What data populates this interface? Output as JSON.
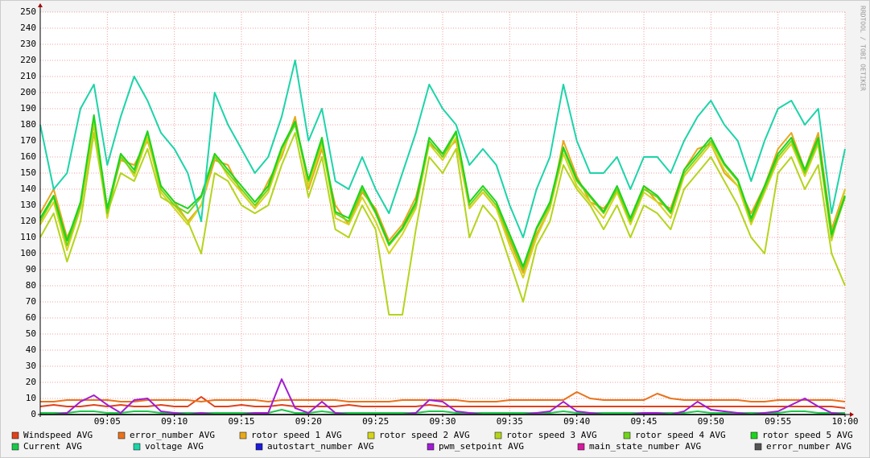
{
  "chart_data": {
    "type": "line",
    "watermark": "RRDTOOL / TOBI OETIKER",
    "x": [
      "09:00",
      "09:01",
      "09:02",
      "09:03",
      "09:04",
      "09:05",
      "09:06",
      "09:07",
      "09:08",
      "09:09",
      "09:10",
      "09:11",
      "09:12",
      "09:13",
      "09:14",
      "09:15",
      "09:16",
      "09:17",
      "09:18",
      "09:19",
      "09:20",
      "09:21",
      "09:22",
      "09:23",
      "09:24",
      "09:25",
      "09:26",
      "09:27",
      "09:28",
      "09:29",
      "09:30",
      "09:31",
      "09:32",
      "09:33",
      "09:34",
      "09:35",
      "09:36",
      "09:37",
      "09:38",
      "09:39",
      "09:40",
      "09:41",
      "09:42",
      "09:43",
      "09:44",
      "09:45",
      "09:46",
      "09:47",
      "09:48",
      "09:49",
      "09:50",
      "09:51",
      "09:52",
      "09:53",
      "09:54",
      "09:55",
      "09:56",
      "09:57",
      "09:58",
      "09:59",
      "10:00"
    ],
    "xlim": [
      "09:00",
      "10:00"
    ],
    "xticks": [
      "09:05",
      "09:10",
      "09:15",
      "09:20",
      "09:25",
      "09:30",
      "09:35",
      "09:40",
      "09:45",
      "09:50",
      "09:55",
      "10:00"
    ],
    "ylim": [
      0,
      250
    ],
    "yticks": [
      0,
      10,
      20,
      30,
      40,
      50,
      60,
      70,
      80,
      90,
      100,
      110,
      120,
      130,
      140,
      150,
      160,
      170,
      180,
      190,
      200,
      210,
      220,
      230,
      240,
      250
    ],
    "grid": true,
    "series": [
      {
        "name": "Windspeed AVG",
        "color": "#e0421c",
        "values": [
          5,
          6,
          5,
          5,
          6,
          5,
          6,
          5,
          5,
          6,
          5,
          5,
          11,
          5,
          5,
          6,
          5,
          5,
          6,
          5,
          5,
          5,
          5,
          6,
          5,
          5,
          5,
          5,
          5,
          6,
          5,
          5,
          5,
          5,
          5,
          5,
          5,
          5,
          5,
          5,
          5,
          5,
          5,
          5,
          5,
          5,
          5,
          5,
          5,
          5,
          5,
          5,
          5,
          5,
          5,
          5,
          5,
          5,
          5,
          5,
          4
        ]
      },
      {
        "name": "error_number AVG",
        "color": "#e8731c",
        "values": [
          8,
          8,
          9,
          9,
          9,
          9,
          8,
          8,
          9,
          9,
          9,
          9,
          8,
          9,
          9,
          9,
          9,
          8,
          9,
          9,
          9,
          9,
          9,
          8,
          8,
          8,
          8,
          9,
          9,
          9,
          9,
          9,
          8,
          8,
          8,
          9,
          9,
          9,
          9,
          9,
          14,
          10,
          9,
          9,
          9,
          9,
          13,
          10,
          9,
          9,
          9,
          9,
          9,
          8,
          8,
          9,
          9,
          9,
          9,
          9,
          8
        ]
      },
      {
        "name": "rotor speed 1 AVG",
        "color": "#e8a81c",
        "values": [
          125,
          140,
          110,
          128,
          180,
          128,
          158,
          155,
          170,
          142,
          132,
          120,
          130,
          158,
          155,
          138,
          128,
          145,
          160,
          185,
          140,
          165,
          130,
          118,
          138,
          128,
          108,
          118,
          135,
          168,
          162,
          170,
          128,
          138,
          128,
          108,
          88,
          112,
          128,
          170,
          148,
          132,
          128,
          138,
          122,
          142,
          132,
          128,
          152,
          165,
          168,
          150,
          142,
          125,
          142,
          165,
          175,
          152,
          175,
          115,
          140
        ]
      },
      {
        "name": "rotor speed 2 AVG",
        "color": "#d4d41c",
        "values": [
          118,
          132,
          102,
          128,
          182,
          122,
          162,
          148,
          172,
          138,
          128,
          118,
          130,
          162,
          148,
          138,
          128,
          138,
          162,
          182,
          142,
          168,
          122,
          118,
          135,
          120,
          100,
          112,
          128,
          168,
          158,
          172,
          128,
          138,
          128,
          105,
          85,
          110,
          128,
          162,
          142,
          132,
          122,
          138,
          118,
          138,
          132,
          122,
          148,
          158,
          168,
          152,
          142,
          118,
          138,
          158,
          168,
          148,
          168,
          108,
          140
        ]
      },
      {
        "name": "rotor speed 3 AVG",
        "color": "#b4d41c",
        "values": [
          110,
          125,
          95,
          120,
          175,
          125,
          150,
          145,
          165,
          135,
          130,
          120,
          100,
          150,
          145,
          130,
          125,
          130,
          155,
          175,
          135,
          160,
          115,
          110,
          130,
          115,
          62,
          62,
          115,
          160,
          150,
          165,
          110,
          130,
          120,
          95,
          70,
          105,
          120,
          155,
          140,
          130,
          115,
          130,
          110,
          130,
          125,
          115,
          140,
          150,
          160,
          145,
          130,
          110,
          100,
          150,
          160,
          140,
          155,
          100,
          80
        ]
      },
      {
        "name": "rotor speed 4 AVG",
        "color": "#73d41c",
        "values": [
          120,
          135,
          105,
          130,
          185,
          125,
          160,
          150,
          175,
          140,
          130,
          125,
          135,
          160,
          150,
          140,
          130,
          140,
          165,
          180,
          145,
          170,
          125,
          120,
          140,
          125,
          105,
          115,
          130,
          170,
          160,
          175,
          130,
          140,
          130,
          110,
          90,
          115,
          130,
          165,
          145,
          135,
          125,
          140,
          120,
          140,
          135,
          125,
          150,
          160,
          170,
          155,
          145,
          120,
          140,
          160,
          170,
          150,
          170,
          110,
          135
        ]
      },
      {
        "name": "rotor speed 5 AVG",
        "color": "#1cd41c",
        "values": [
          122,
          136,
          108,
          132,
          186,
          128,
          162,
          152,
          176,
          142,
          132,
          128,
          136,
          162,
          152,
          142,
          132,
          142,
          166,
          182,
          146,
          172,
          126,
          122,
          142,
          126,
          106,
          116,
          132,
          172,
          162,
          176,
          132,
          142,
          132,
          112,
          92,
          116,
          132,
          166,
          146,
          136,
          126,
          142,
          122,
          142,
          136,
          126,
          152,
          162,
          172,
          156,
          146,
          122,
          142,
          162,
          172,
          152,
          172,
          112,
          136
        ]
      },
      {
        "name": "Current AVG",
        "color": "#1cc84a",
        "values": [
          1,
          1,
          1,
          2,
          2,
          1,
          1,
          2,
          2,
          1,
          1,
          1,
          1,
          1,
          1,
          1,
          1,
          1,
          3,
          1,
          1,
          2,
          1,
          1,
          1,
          1,
          1,
          1,
          1,
          2,
          2,
          1,
          1,
          1,
          1,
          1,
          1,
          1,
          1,
          2,
          1,
          1,
          1,
          1,
          1,
          1,
          1,
          1,
          1,
          2,
          1,
          1,
          1,
          1,
          1,
          1,
          2,
          2,
          1,
          1,
          1
        ]
      },
      {
        "name": "voltage AVG",
        "color": "#1cd4a8",
        "values": [
          180,
          140,
          150,
          190,
          205,
          155,
          185,
          210,
          195,
          175,
          165,
          150,
          120,
          200,
          180,
          165,
          150,
          160,
          185,
          220,
          170,
          190,
          145,
          140,
          160,
          140,
          125,
          150,
          175,
          205,
          190,
          180,
          155,
          165,
          155,
          130,
          110,
          140,
          160,
          205,
          170,
          150,
          150,
          160,
          140,
          160,
          160,
          150,
          170,
          185,
          195,
          180,
          170,
          145,
          170,
          190,
          195,
          180,
          190,
          125,
          165
        ]
      },
      {
        "name": "autostart_number AVG",
        "color": "#1c1cd4",
        "values": [
          0,
          0,
          0,
          0,
          0,
          0,
          0,
          0,
          0,
          0,
          0,
          0,
          0,
          0,
          0,
          0,
          0,
          0,
          0,
          0,
          0,
          0,
          0,
          0,
          0,
          0,
          0,
          0,
          0,
          0,
          0,
          0,
          0,
          0,
          0,
          0,
          0,
          0,
          0,
          0,
          0,
          0,
          0,
          0,
          0,
          0,
          0,
          0,
          0,
          0,
          0,
          0,
          0,
          0,
          0,
          0,
          0,
          0,
          0,
          0,
          0
        ]
      },
      {
        "name": "pwm_setpoint AVG",
        "color": "#a01cd4",
        "values": [
          0,
          0,
          1,
          8,
          12,
          6,
          1,
          9,
          10,
          2,
          1,
          0,
          1,
          0,
          0,
          0,
          1,
          1,
          22,
          4,
          1,
          8,
          1,
          0,
          0,
          0,
          0,
          0,
          1,
          9,
          8,
          2,
          1,
          0,
          0,
          0,
          0,
          1,
          2,
          8,
          2,
          1,
          0,
          0,
          0,
          1,
          1,
          0,
          2,
          8,
          3,
          2,
          1,
          0,
          1,
          2,
          6,
          10,
          5,
          1,
          0
        ]
      },
      {
        "name": "main_state_number AVG",
        "color": "#d41ca0",
        "values": [
          0,
          0,
          0,
          0,
          0,
          0,
          0,
          0,
          0,
          0,
          0,
          0,
          0,
          0,
          0,
          0,
          0,
          0,
          0,
          0,
          0,
          0,
          0,
          0,
          0,
          0,
          0,
          0,
          0,
          0,
          0,
          0,
          0,
          0,
          0,
          0,
          0,
          0,
          0,
          0,
          0,
          0,
          0,
          0,
          0,
          0,
          0,
          0,
          0,
          0,
          0,
          0,
          0,
          0,
          0,
          0,
          0,
          0,
          0,
          0,
          0
        ]
      },
      {
        "name": "error_number AVG",
        "color": "#555555",
        "values": [
          0,
          0,
          0,
          0,
          0,
          0,
          0,
          0,
          0,
          0,
          0,
          0,
          0,
          0,
          0,
          0,
          0,
          0,
          0,
          0,
          0,
          0,
          0,
          0,
          0,
          0,
          0,
          0,
          0,
          0,
          0,
          0,
          0,
          0,
          0,
          0,
          0,
          0,
          0,
          0,
          0,
          0,
          0,
          0,
          0,
          0,
          0,
          0,
          0,
          0,
          0,
          0,
          0,
          0,
          0,
          0,
          0,
          0,
          0,
          0,
          0
        ]
      }
    ]
  }
}
